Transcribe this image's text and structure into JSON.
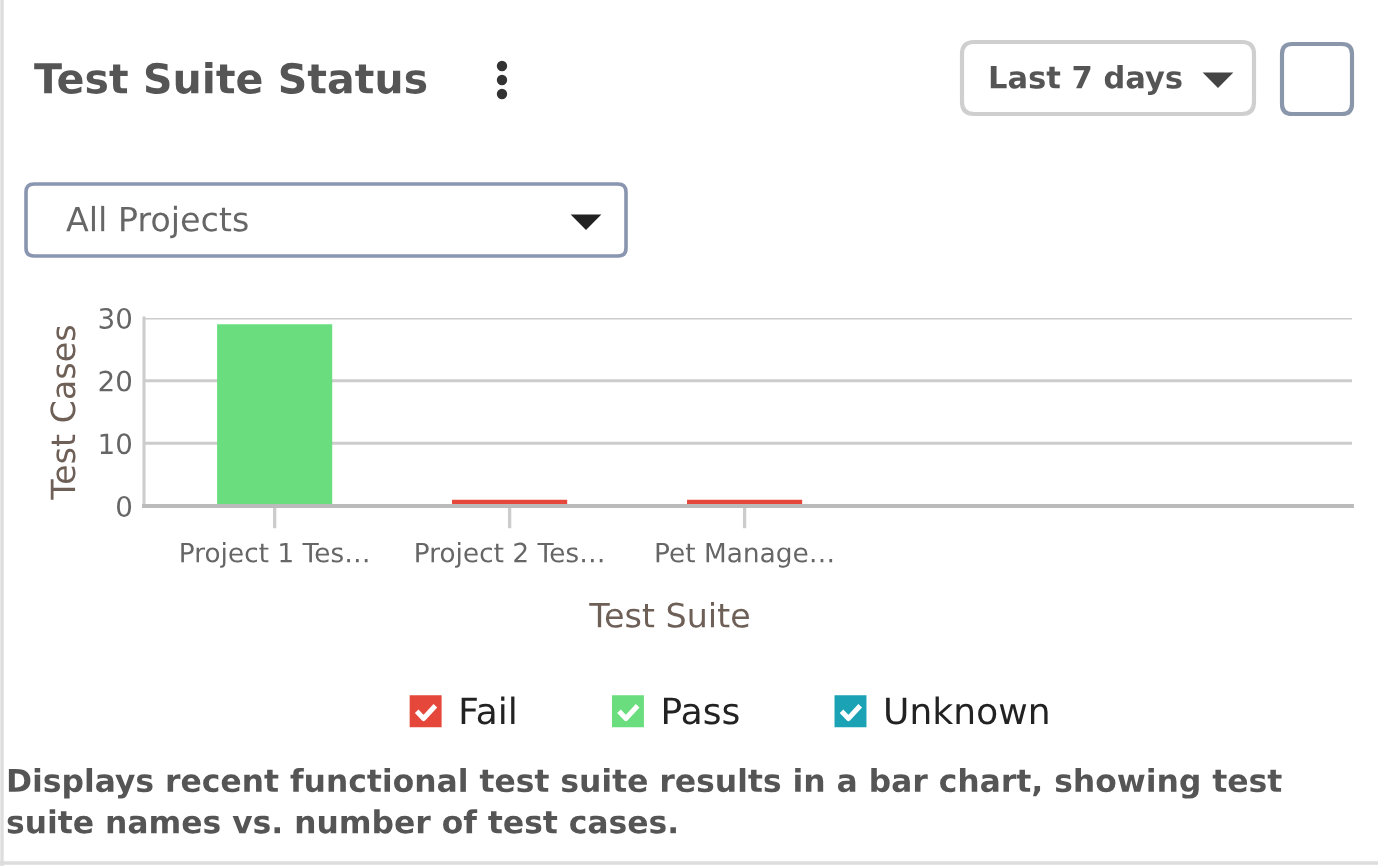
{
  "chart_data": {
    "type": "bar",
    "title": "Test Suite Status",
    "xlabel": "Test Suite",
    "ylabel": "Test Cases",
    "categories": [
      "Project 1 Tes…",
      "Project 2 Tes…",
      "Pet Manage…"
    ],
    "series": [
      {
        "name": "Fail",
        "color": "#e5473b",
        "values": [
          null,
          1,
          1
        ]
      },
      {
        "name": "Pass",
        "color": "#6ade7e",
        "values": [
          29,
          null,
          null
        ]
      },
      {
        "name": "Unknown",
        "values": [
          null,
          null,
          null
        ]
      }
    ],
    "stacked": true,
    "ylim": [
      0,
      30
    ],
    "yticks": [
      0,
      10,
      20,
      30
    ],
    "grid": "y",
    "legend": "bottom",
    "annotations": [
      "Last 7 days",
      "All Projects",
      "Displays recent functional test suite results in a bar chart, showing test suite names vs. number of test cases."
    ]
  }
}
